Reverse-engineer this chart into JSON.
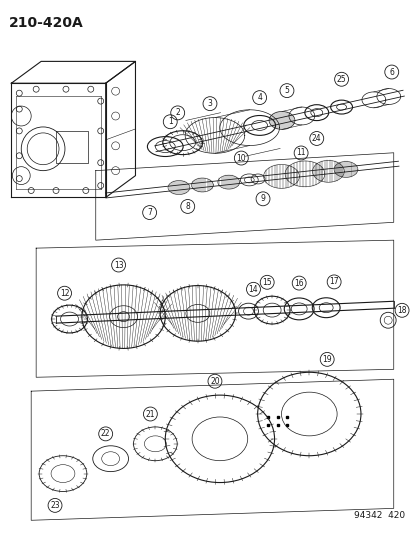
{
  "title": "210-420A",
  "ref_num": "94342  420",
  "bg_color": "#ffffff",
  "line_color": "#1a1a1a",
  "title_fontsize": 10,
  "ref_fontsize": 6.5,
  "fig_width": 4.14,
  "fig_height": 5.33,
  "dpi": 100
}
